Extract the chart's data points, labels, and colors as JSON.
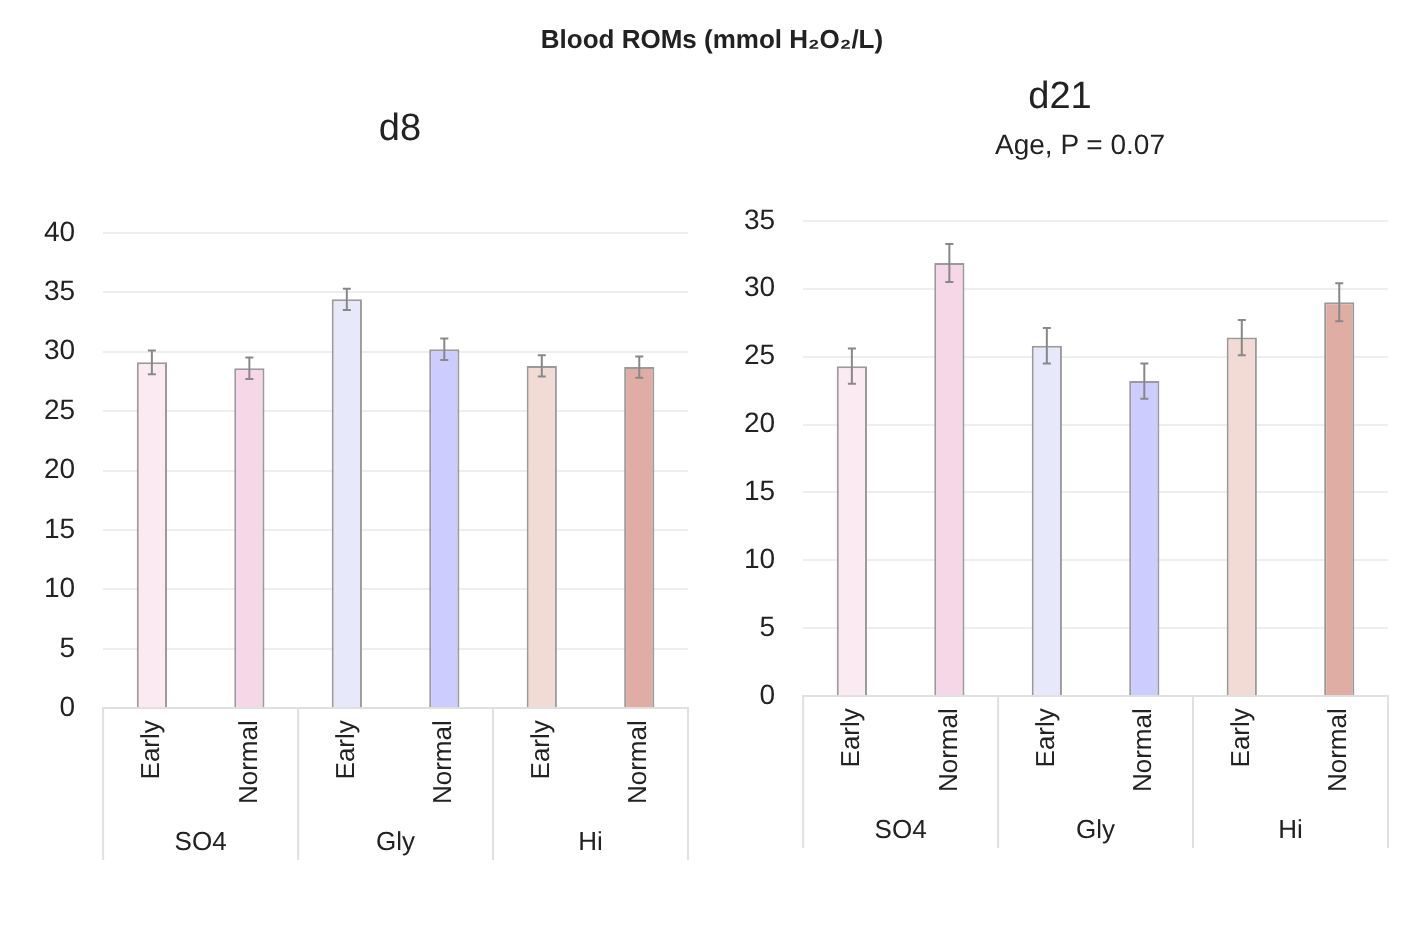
{
  "chart_data": [
    {
      "type": "bar",
      "title": "Blood ROMs (mmol H₂O₂/L)",
      "subtitle": "d8",
      "categories": [
        "Early",
        "Normal",
        "Early",
        "Normal",
        "Early",
        "Normal"
      ],
      "values": [
        29.1,
        28.6,
        34.4,
        30.2,
        28.8,
        28.7
      ],
      "errors": [
        1.0,
        0.9,
        0.9,
        0.9,
        0.9,
        0.9
      ],
      "colors": [
        "#fbeaf1",
        "#f5d7e8",
        "#e8e8fb",
        "#ccccff",
        "#f2dbd4",
        "#dfada3"
      ],
      "ylim": [
        0,
        40
      ],
      "yticks": [
        0,
        5,
        10,
        15,
        20,
        25,
        30,
        35,
        40
      ],
      "grid": "y",
      "annotations": [
        "SO4",
        "Gly",
        "Hi"
      ]
    },
    {
      "type": "bar",
      "title": "d21",
      "subtitle": "Age, P = 0.07",
      "categories": [
        "Early",
        "Normal",
        "Early",
        "Normal",
        "Early",
        "Normal"
      ],
      "values": [
        24.3,
        31.9,
        25.8,
        23.2,
        26.4,
        29.0
      ],
      "errors": [
        1.3,
        1.4,
        1.3,
        1.3,
        1.3,
        1.4
      ],
      "colors": [
        "#fbeaf1",
        "#f5d7e8",
        "#e8e8fb",
        "#ccccff",
        "#f2dbd4",
        "#dfada3"
      ],
      "ylim": [
        0,
        35
      ],
      "yticks": [
        0,
        5,
        10,
        15,
        20,
        25,
        30,
        35
      ],
      "grid": "y",
      "annotations": [
        "SO4",
        "Gly",
        "Hi"
      ]
    }
  ]
}
